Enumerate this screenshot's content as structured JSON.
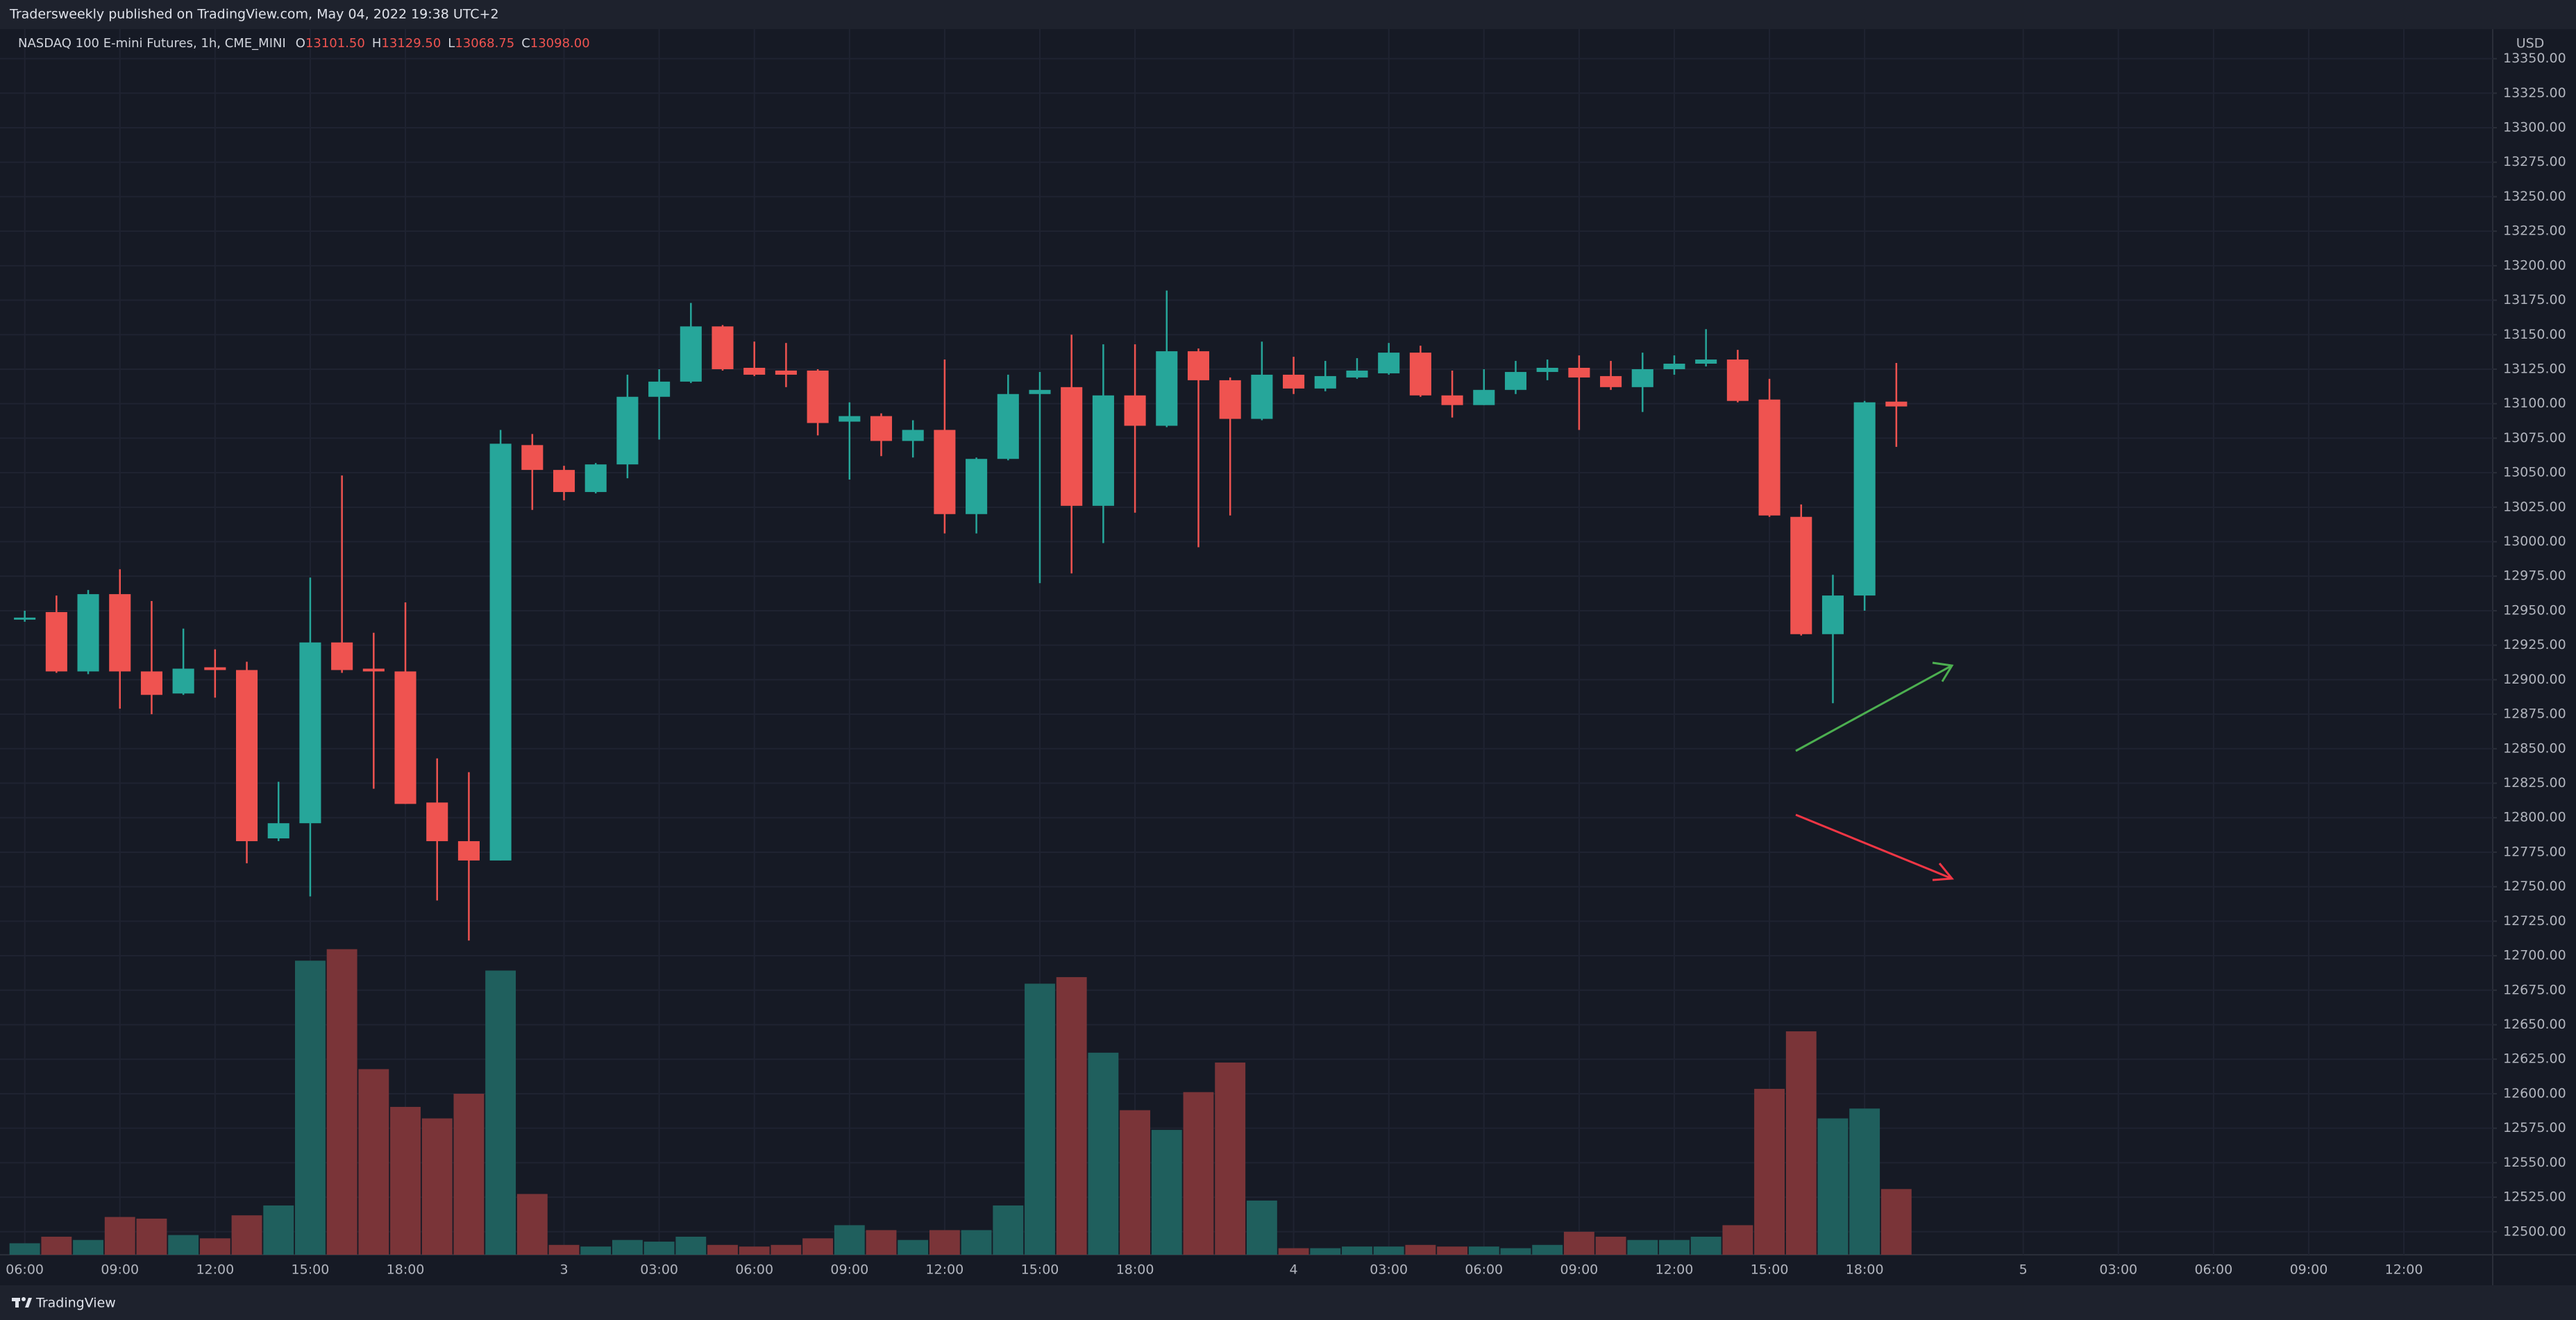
{
  "header": {
    "title": "Tradersweekly published on TradingView.com, May 04, 2022 19:38 UTC+2"
  },
  "footer": {
    "brand": "TradingView"
  },
  "chart_data": {
    "type": "candlestick",
    "legend": {
      "title": "NASDAQ 100 E-mini Futures, 1h, CME_MINI",
      "items": [
        {
          "key": "O",
          "value": "13101.50"
        },
        {
          "key": "H",
          "value": "13129.50"
        },
        {
          "key": "L",
          "value": "13068.75"
        },
        {
          "key": "C",
          "value": "13098.00"
        }
      ]
    },
    "currency": "USD",
    "open": [
      12945,
      12949,
      12906,
      12962,
      12906,
      12890,
      12909,
      12907,
      12785,
      12796,
      12927,
      12908,
      12906,
      12811,
      12783,
      12769,
      13070,
      13052,
      13036,
      13056,
      13105,
      13116,
      13156,
      13126,
      13124,
      13124,
      13087,
      13091,
      13073,
      13081,
      13020,
      13060,
      13107,
      13112,
      13026,
      13106,
      13084,
      13138,
      13117,
      13089,
      13121,
      13111,
      13119,
      13122,
      13137,
      13106,
      13099,
      13110,
      13123,
      13126,
      13120,
      13112,
      13125,
      13129,
      13132,
      13103,
      13018,
      12933,
      12961,
      13101.5
    ],
    "high": [
      12950,
      12961,
      12965,
      12980,
      12957,
      12937,
      12922,
      12913,
      12826,
      12974,
      13048,
      12934,
      12956,
      12843,
      12833,
      13081,
      13078,
      13055,
      13057,
      13121,
      13125,
      13173,
      13157,
      13145,
      13144,
      13125,
      13101,
      13093,
      13088,
      13132,
      13061,
      13121,
      13123,
      13150,
      13143,
      13143,
      13182,
      13140,
      13119,
      13145,
      13134,
      13131,
      13133,
      13144,
      13142,
      13124,
      13125,
      13131,
      13132,
      13135,
      13131,
      13137,
      13135,
      13154,
      13139,
      13118,
      13027,
      12976,
      13102,
      13129.5
    ],
    "low": [
      12942,
      12905,
      12904,
      12879,
      12875,
      12889,
      12887,
      12767,
      12783,
      12743,
      12905,
      12821,
      12810,
      12740,
      12711,
      12769,
      13023,
      13030,
      13035,
      13046,
      13074,
      13115,
      13124,
      13120,
      13112,
      13077,
      13045,
      13062,
      13061,
      13006,
      13006,
      13059,
      12970,
      12977,
      12999,
      13021,
      13083,
      12996,
      13019,
      13088,
      13107,
      13109,
      13118,
      13121,
      13105,
      13090,
      13099,
      13107,
      13117,
      13081,
      13110,
      13094,
      13121,
      13127,
      13101,
      13018,
      12932,
      12883,
      12950,
      13068.75
    ],
    "close": [
      12945,
      12906,
      12962,
      12906,
      12889,
      12908,
      12907,
      12783,
      12796,
      12927,
      12907,
      12906,
      12810,
      12783,
      12769,
      13071,
      13052,
      13036,
      13056,
      13105,
      13116,
      13156,
      13125,
      13121,
      13121,
      13086,
      13091,
      13073,
      13081,
      13020,
      13060,
      13107,
      13110,
      13026,
      13106,
      13084,
      13138,
      13117,
      13089,
      13121,
      13111,
      13120,
      13124,
      13137,
      13106,
      13099,
      13110,
      13123,
      13126,
      13119,
      13112,
      13125,
      13129,
      13132,
      13102,
      13019,
      12933,
      12961,
      13101,
      13098
    ],
    "volume": [
      7,
      11,
      9,
      23,
      22,
      12,
      10,
      24,
      30,
      179,
      186,
      113,
      90,
      83,
      98,
      173,
      37,
      6,
      5,
      9,
      8,
      11,
      6,
      5,
      6,
      10,
      18,
      15,
      9,
      15,
      15,
      30,
      165,
      169,
      123,
      88,
      76,
      99,
      117,
      33,
      4,
      4,
      5,
      5,
      6,
      5,
      5,
      4,
      6,
      14,
      11,
      9,
      9,
      11,
      18,
      101,
      136,
      83,
      89,
      40
    ],
    "volume_ylim": [
      0,
      746
    ],
    "up_color": "#26a69a",
    "down_color": "#ef5350",
    "volume_up_color": "#1f5f5d",
    "volume_down_color": "#7a3438",
    "grid": true,
    "xlim": [
      -0.78,
      77.8
    ],
    "xticks": [
      {
        "value": 0,
        "label": "06:00"
      },
      {
        "value": 3,
        "label": "09:00"
      },
      {
        "value": 6,
        "label": "12:00"
      },
      {
        "value": 9,
        "label": "15:00"
      },
      {
        "value": 12,
        "label": "18:00"
      },
      {
        "value": 17,
        "label": "3"
      },
      {
        "value": 20,
        "label": "03:00"
      },
      {
        "value": 23,
        "label": "06:00"
      },
      {
        "value": 26,
        "label": "09:00"
      },
      {
        "value": 29,
        "label": "12:00"
      },
      {
        "value": 32,
        "label": "15:00"
      },
      {
        "value": 35,
        "label": "18:00"
      },
      {
        "value": 40,
        "label": "4"
      },
      {
        "value": 43,
        "label": "03:00"
      },
      {
        "value": 46,
        "label": "06:00"
      },
      {
        "value": 49,
        "label": "09:00"
      },
      {
        "value": 52,
        "label": "12:00"
      },
      {
        "value": 55,
        "label": "15:00"
      },
      {
        "value": 58,
        "label": "18:00"
      },
      {
        "value": 63,
        "label": "5"
      },
      {
        "value": 66,
        "label": "03:00"
      },
      {
        "value": 69,
        "label": "06:00"
      },
      {
        "value": 72,
        "label": "09:00"
      },
      {
        "value": 75,
        "label": "12:00"
      }
    ],
    "ylim": [
      12483.3,
      13371.4
    ],
    "yticks": [
      {
        "value": 13350,
        "label": "13350.00"
      },
      {
        "value": 13325,
        "label": "13325.00"
      },
      {
        "value": 13300,
        "label": "13300.00"
      },
      {
        "value": 13275,
        "label": "13275.00"
      },
      {
        "value": 13250,
        "label": "13250.00"
      },
      {
        "value": 13225,
        "label": "13225.00"
      },
      {
        "value": 13200,
        "label": "13200.00"
      },
      {
        "value": 13175,
        "label": "13175.00"
      },
      {
        "value": 13150,
        "label": "13150.00"
      },
      {
        "value": 13125,
        "label": "13125.00"
      },
      {
        "value": 13100,
        "label": "13100.00"
      },
      {
        "value": 13075,
        "label": "13075.00"
      },
      {
        "value": 13050,
        "label": "13050.00"
      },
      {
        "value": 13025,
        "label": "13025.00"
      },
      {
        "value": 13000,
        "label": "13000.00"
      },
      {
        "value": 12975,
        "label": "12975.00"
      },
      {
        "value": 12950,
        "label": "12950.00"
      },
      {
        "value": 12925,
        "label": "12925.00"
      },
      {
        "value": 12900,
        "label": "12900.00"
      },
      {
        "value": 12875,
        "label": "12875.00"
      },
      {
        "value": 12850,
        "label": "12850.00"
      },
      {
        "value": 12825,
        "label": "12825.00"
      },
      {
        "value": 12800,
        "label": "12800.00"
      },
      {
        "value": 12775,
        "label": "12775.00"
      },
      {
        "value": 12750,
        "label": "12750.00"
      },
      {
        "value": 12725,
        "label": "12725.00"
      },
      {
        "value": 12700,
        "label": "12700.00"
      },
      {
        "value": 12675,
        "label": "12675.00"
      },
      {
        "value": 12650,
        "label": "12650.00"
      },
      {
        "value": 12625,
        "label": "12625.00"
      },
      {
        "value": 12600,
        "label": "12600.00"
      },
      {
        "value": 12575,
        "label": "12575.00"
      },
      {
        "value": 12550,
        "label": "12550.00"
      },
      {
        "value": 12525,
        "label": "12525.00"
      },
      {
        "value": 12500,
        "label": "12500.00"
      }
    ]
  }
}
